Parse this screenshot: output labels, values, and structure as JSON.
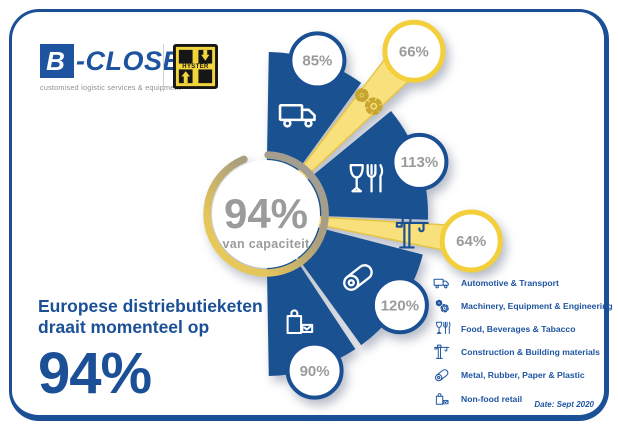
{
  "brand": {
    "name_initial": "B",
    "name_rest": "-CLOSE",
    "tagline": "customised logistic services & equipment",
    "partner_name": "HYSTER"
  },
  "headline": {
    "line1": "Europese distriebutieketen",
    "line2": "draait momenteel op",
    "big_value": "94%"
  },
  "gauge": {
    "value": "94%",
    "label": "van capaciteit"
  },
  "footnote": "Date: Sept 2020",
  "colors": {
    "primary_blue": "#1a5191",
    "bubble_blue": "#1a4f93",
    "blade_yellow": "#f8e17c",
    "blade_edge_yellow": "#e7c544",
    "bubble_yellow": "#f3cf3b",
    "text_gray": "#9b9b9b",
    "gear_icon_yellow": "#c7a52e",
    "white": "#ffffff"
  },
  "chart_data": {
    "type": "pie",
    "center_value": 94,
    "center_display": "94%",
    "center_label": "van capaciteit",
    "unit": "% van capaciteit",
    "legend_position": "bottom-right",
    "segments": [
      {
        "label": "Automotive & Transport",
        "value": 85,
        "display": "85%",
        "highlight": false,
        "icon": "truck"
      },
      {
        "label": "Machinery, Equipment & Engineering",
        "value": 66,
        "display": "66%",
        "highlight": true,
        "icon": "gears"
      },
      {
        "label": "Food, Beverages & Tabacco",
        "value": 113,
        "display": "113%",
        "highlight": false,
        "icon": "food"
      },
      {
        "label": "Construction & Building materials",
        "value": 64,
        "display": "64%",
        "highlight": true,
        "icon": "crane"
      },
      {
        "label": "Metal, Rubber, Paper & Plastic",
        "value": 120,
        "display": "120%",
        "highlight": false,
        "icon": "roll"
      },
      {
        "label": "Non-food retail",
        "value": 90,
        "display": "90%",
        "highlight": false,
        "icon": "bag"
      }
    ]
  }
}
